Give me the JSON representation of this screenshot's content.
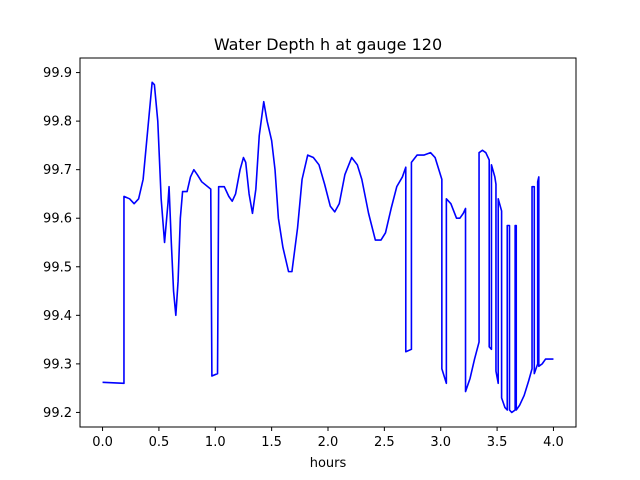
{
  "chart_data": {
    "type": "line",
    "title": "Water Depth h at gauge 120",
    "xlabel": "hours",
    "ylabel": "",
    "xlim": [
      -0.2,
      4.2
    ],
    "ylim": [
      99.17,
      99.93
    ],
    "xticks": [
      0.0,
      0.5,
      1.0,
      1.5,
      2.0,
      2.5,
      3.0,
      3.5,
      4.0
    ],
    "xtick_labels": [
      "0.0",
      "0.5",
      "1.0",
      "1.5",
      "2.0",
      "2.5",
      "3.0",
      "3.5",
      "4.0"
    ],
    "yticks": [
      99.2,
      99.3,
      99.4,
      99.5,
      99.6,
      99.7,
      99.8,
      99.9
    ],
    "ytick_labels": [
      "99.2",
      "99.3",
      "99.4",
      "99.5",
      "99.6",
      "99.7",
      "99.8",
      "99.9"
    ],
    "grid": false,
    "series": [
      {
        "color": "#0000ff",
        "points": [
          [
            0.0,
            99.262
          ],
          [
            0.19,
            99.26
          ],
          [
            0.19,
            99.645
          ],
          [
            0.24,
            99.64
          ],
          [
            0.28,
            99.63
          ],
          [
            0.32,
            99.64
          ],
          [
            0.36,
            99.68
          ],
          [
            0.4,
            99.78
          ],
          [
            0.44,
            99.88
          ],
          [
            0.46,
            99.875
          ],
          [
            0.49,
            99.8
          ],
          [
            0.52,
            99.64
          ],
          [
            0.55,
            99.55
          ],
          [
            0.58,
            99.63
          ],
          [
            0.59,
            99.665
          ],
          [
            0.61,
            99.55
          ],
          [
            0.63,
            99.45
          ],
          [
            0.65,
            99.4
          ],
          [
            0.67,
            99.47
          ],
          [
            0.69,
            99.6
          ],
          [
            0.71,
            99.655
          ],
          [
            0.75,
            99.655
          ],
          [
            0.78,
            99.685
          ],
          [
            0.81,
            99.7
          ],
          [
            0.84,
            99.69
          ],
          [
            0.88,
            99.675
          ],
          [
            0.96,
            99.66
          ],
          [
            0.97,
            99.275
          ],
          [
            1.02,
            99.28
          ],
          [
            1.03,
            99.665
          ],
          [
            1.08,
            99.665
          ],
          [
            1.12,
            99.645
          ],
          [
            1.15,
            99.635
          ],
          [
            1.18,
            99.65
          ],
          [
            1.22,
            99.7
          ],
          [
            1.25,
            99.725
          ],
          [
            1.27,
            99.715
          ],
          [
            1.3,
            99.65
          ],
          [
            1.33,
            99.61
          ],
          [
            1.36,
            99.66
          ],
          [
            1.39,
            99.77
          ],
          [
            1.43,
            99.84
          ],
          [
            1.46,
            99.8
          ],
          [
            1.5,
            99.76
          ],
          [
            1.53,
            99.7
          ],
          [
            1.56,
            99.6
          ],
          [
            1.6,
            99.54
          ],
          [
            1.65,
            99.49
          ],
          [
            1.68,
            99.49
          ],
          [
            1.73,
            99.58
          ],
          [
            1.77,
            99.68
          ],
          [
            1.82,
            99.73
          ],
          [
            1.87,
            99.725
          ],
          [
            1.92,
            99.71
          ],
          [
            1.97,
            99.67
          ],
          [
            2.02,
            99.625
          ],
          [
            2.06,
            99.613
          ],
          [
            2.1,
            99.63
          ],
          [
            2.15,
            99.69
          ],
          [
            2.21,
            99.725
          ],
          [
            2.26,
            99.71
          ],
          [
            2.3,
            99.68
          ],
          [
            2.36,
            99.61
          ],
          [
            2.42,
            99.555
          ],
          [
            2.47,
            99.555
          ],
          [
            2.51,
            99.57
          ],
          [
            2.56,
            99.62
          ],
          [
            2.61,
            99.665
          ],
          [
            2.66,
            99.685
          ],
          [
            2.69,
            99.705
          ],
          [
            2.69,
            99.325
          ],
          [
            2.74,
            99.33
          ],
          [
            2.74,
            99.715
          ],
          [
            2.79,
            99.73
          ],
          [
            2.85,
            99.73
          ],
          [
            2.91,
            99.735
          ],
          [
            2.95,
            99.725
          ],
          [
            3.01,
            99.68
          ],
          [
            3.01,
            99.29
          ],
          [
            3.05,
            99.26
          ],
          [
            3.05,
            99.64
          ],
          [
            3.09,
            99.63
          ],
          [
            3.14,
            99.6
          ],
          [
            3.17,
            99.6
          ],
          [
            3.2,
            99.61
          ],
          [
            3.22,
            99.62
          ],
          [
            3.22,
            99.243
          ],
          [
            3.26,
            99.27
          ],
          [
            3.3,
            99.31
          ],
          [
            3.34,
            99.345
          ],
          [
            3.34,
            99.735
          ],
          [
            3.37,
            99.74
          ],
          [
            3.4,
            99.735
          ],
          [
            3.43,
            99.72
          ],
          [
            3.43,
            99.335
          ],
          [
            3.45,
            99.33
          ],
          [
            3.45,
            99.71
          ],
          [
            3.48,
            99.685
          ],
          [
            3.49,
            99.67
          ],
          [
            3.49,
            99.285
          ],
          [
            3.51,
            99.26
          ],
          [
            3.51,
            99.64
          ],
          [
            3.54,
            99.615
          ],
          [
            3.54,
            99.23
          ],
          [
            3.57,
            99.21
          ],
          [
            3.59,
            99.205
          ],
          [
            3.59,
            99.585
          ],
          [
            3.61,
            99.585
          ],
          [
            3.61,
            99.205
          ],
          [
            3.63,
            99.2
          ],
          [
            3.66,
            99.205
          ],
          [
            3.66,
            99.585
          ],
          [
            3.67,
            99.585
          ],
          [
            3.67,
            99.205
          ],
          [
            3.7,
            99.215
          ],
          [
            3.74,
            99.235
          ],
          [
            3.78,
            99.265
          ],
          [
            3.81,
            99.29
          ],
          [
            3.81,
            99.665
          ],
          [
            3.83,
            99.665
          ],
          [
            3.83,
            99.28
          ],
          [
            3.86,
            99.3
          ],
          [
            3.86,
            99.675
          ],
          [
            3.87,
            99.685
          ],
          [
            3.87,
            99.295
          ],
          [
            3.9,
            99.3
          ],
          [
            3.93,
            99.31
          ],
          [
            3.97,
            99.31
          ],
          [
            4.0,
            99.31
          ]
        ]
      }
    ]
  }
}
